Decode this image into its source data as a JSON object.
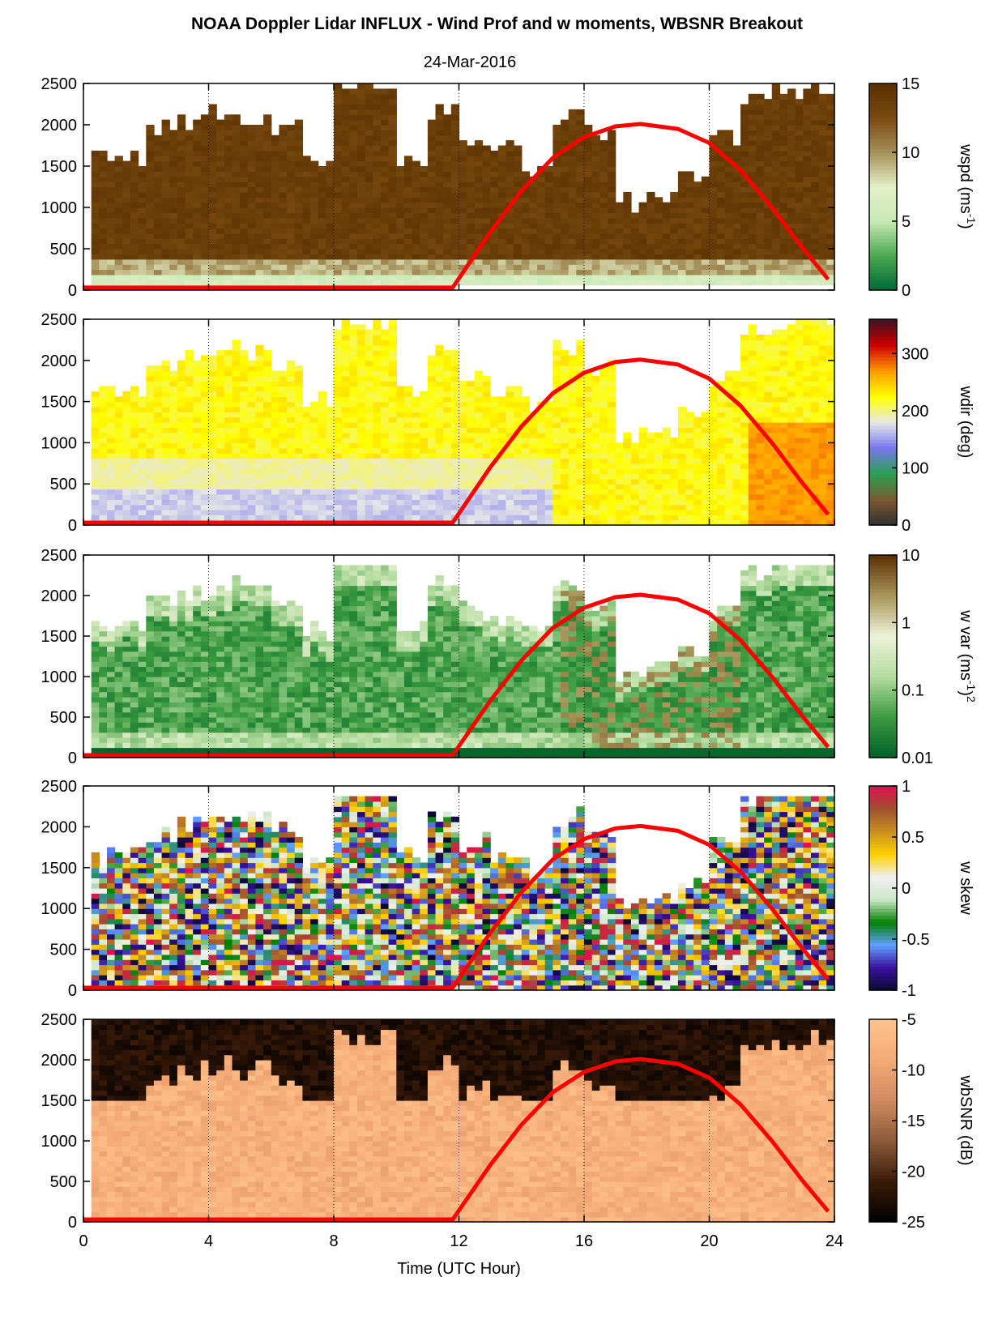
{
  "title": "NOAA Doppler Lidar INFLUX - Wind Prof and w moments, WBSNR Breakout",
  "subtitle": "24-Mar-2016",
  "colors": {
    "sun_curve": "#ff0000",
    "no_data": "#ffffff"
  },
  "chart_data": [
    {
      "type": "heatmap",
      "id": "wspd",
      "ylabel": "",
      "xlim": [
        0,
        24
      ],
      "ylim": [
        0,
        2500
      ],
      "yticks": [
        0,
        500,
        1000,
        1500,
        2000,
        2500
      ],
      "xticks": [
        0,
        4,
        8,
        12,
        16,
        20,
        24
      ],
      "colorbar": {
        "label": "wspd (ms-1)",
        "label_main": "wspd (ms",
        "label_sup": "-1",
        "label_tail": ")",
        "ticks": [
          "0",
          "5",
          "10",
          "15"
        ],
        "range": [
          0,
          15
        ],
        "palette": [
          "#006837",
          "#4aa84f",
          "#c7e9b4",
          "#e6f0c8",
          "#a5915a",
          "#7a4a10",
          "#5a3000"
        ]
      },
      "top_heights": [
        [
          0,
          1650
        ],
        [
          1,
          1680
        ],
        [
          2,
          1950
        ],
        [
          3,
          2100
        ],
        [
          4,
          2150
        ],
        [
          5,
          2100
        ],
        [
          6,
          2000
        ],
        [
          7,
          1600
        ],
        [
          8,
          2500
        ],
        [
          9,
          2500
        ],
        [
          10,
          1650
        ],
        [
          11,
          2200
        ],
        [
          12,
          1850
        ],
        [
          13,
          1700
        ],
        [
          14,
          1550
        ],
        [
          15,
          2150
        ],
        [
          16,
          1900
        ],
        [
          17,
          1100
        ],
        [
          18,
          1200
        ],
        [
          19,
          1400
        ],
        [
          20,
          1850
        ],
        [
          21,
          2350
        ],
        [
          22,
          2450
        ],
        [
          23,
          2500
        ]
      ],
      "median_value_ms": 13.5
    },
    {
      "type": "heatmap",
      "id": "wdir",
      "xlim": [
        0,
        24
      ],
      "ylim": [
        0,
        2500
      ],
      "yticks": [
        0,
        500,
        1000,
        1500,
        2000,
        2500
      ],
      "colorbar": {
        "label": "wdir (deg)",
        "ticks": [
          "0",
          "100",
          "200",
          "300"
        ],
        "range": [
          0,
          360
        ],
        "palette": [
          "#303030",
          "#7a5a30",
          "#2aa050",
          "#7777ee",
          "#e8e8e8",
          "#ffff00",
          "#ff9900",
          "#cc0000",
          "#401020"
        ]
      },
      "typical_deg": {
        "lower": 180,
        "upper": 235,
        "late_day": 260
      }
    },
    {
      "type": "heatmap",
      "id": "wvar",
      "xlim": [
        0,
        24
      ],
      "ylim": [
        0,
        2500
      ],
      "yticks": [
        0,
        500,
        1000,
        1500,
        2000,
        2500
      ],
      "colorbar": {
        "label": "w var (ms-1)2",
        "label_main": "w var (ms",
        "label_sup": "-1",
        "label_tail": ")",
        "label_sup2": "2",
        "ticks": [
          "0.01",
          "0.1",
          "1",
          "10"
        ],
        "log_range": [
          0.01,
          10
        ],
        "palette": [
          "#00602a",
          "#3a9a3f",
          "#b4dca0",
          "#eef3d8",
          "#a8965a",
          "#5a3000"
        ]
      }
    },
    {
      "type": "heatmap",
      "id": "wskew",
      "xlim": [
        0,
        24
      ],
      "ylim": [
        0,
        2500
      ],
      "yticks": [
        0,
        500,
        1000,
        1500,
        2000,
        2500
      ],
      "colorbar": {
        "label": "w skew",
        "ticks": [
          "-1",
          "-0.5",
          "0",
          "0.5",
          "1"
        ],
        "range": [
          -1,
          1
        ],
        "palette": [
          "#0a0a30",
          "#3a10a0",
          "#60a0ff",
          "#008000",
          "#cce8c8",
          "#f0f0f0",
          "#ffd000",
          "#c89020",
          "#a05030",
          "#e01050"
        ]
      }
    },
    {
      "type": "heatmap",
      "id": "wbsnr",
      "xlim": [
        0,
        24
      ],
      "ylim": [
        0,
        2500
      ],
      "yticks": [
        0,
        500,
        1000,
        1500,
        2000,
        2500
      ],
      "xticks": [
        0,
        4,
        8,
        12,
        16,
        20,
        24
      ],
      "xlabel": "Time (UTC Hour)",
      "colorbar": {
        "label": "wbSNR (dB)",
        "ticks": [
          "-25",
          "-20",
          "-15",
          "-10",
          "-5"
        ],
        "range": [
          -25,
          -5
        ],
        "palette": [
          "#000000",
          "#3a1a08",
          "#8a5a38",
          "#d08a60",
          "#f4aa76",
          "#ffc48e"
        ]
      }
    }
  ],
  "sun_elevation_curve": {
    "description_units": "height proxy in m on each panel",
    "points": [
      [
        0,
        30
      ],
      [
        11.8,
        30
      ],
      [
        13,
        700
      ],
      [
        14,
        1200
      ],
      [
        15,
        1600
      ],
      [
        16,
        1850
      ],
      [
        17,
        1980
      ],
      [
        17.8,
        2010
      ],
      [
        19,
        1950
      ],
      [
        20,
        1780
      ],
      [
        21,
        1450
      ],
      [
        22,
        1000
      ],
      [
        23,
        500
      ],
      [
        23.8,
        130
      ]
    ]
  },
  "dotted_verticals": [
    4,
    8,
    12,
    16,
    20
  ],
  "axis": {
    "x_tick_labels": [
      "0",
      "4",
      "8",
      "12",
      "16",
      "20",
      "24"
    ],
    "y_tick_labels": [
      "0",
      "500",
      "1000",
      "1500",
      "2000",
      "2500"
    ]
  }
}
